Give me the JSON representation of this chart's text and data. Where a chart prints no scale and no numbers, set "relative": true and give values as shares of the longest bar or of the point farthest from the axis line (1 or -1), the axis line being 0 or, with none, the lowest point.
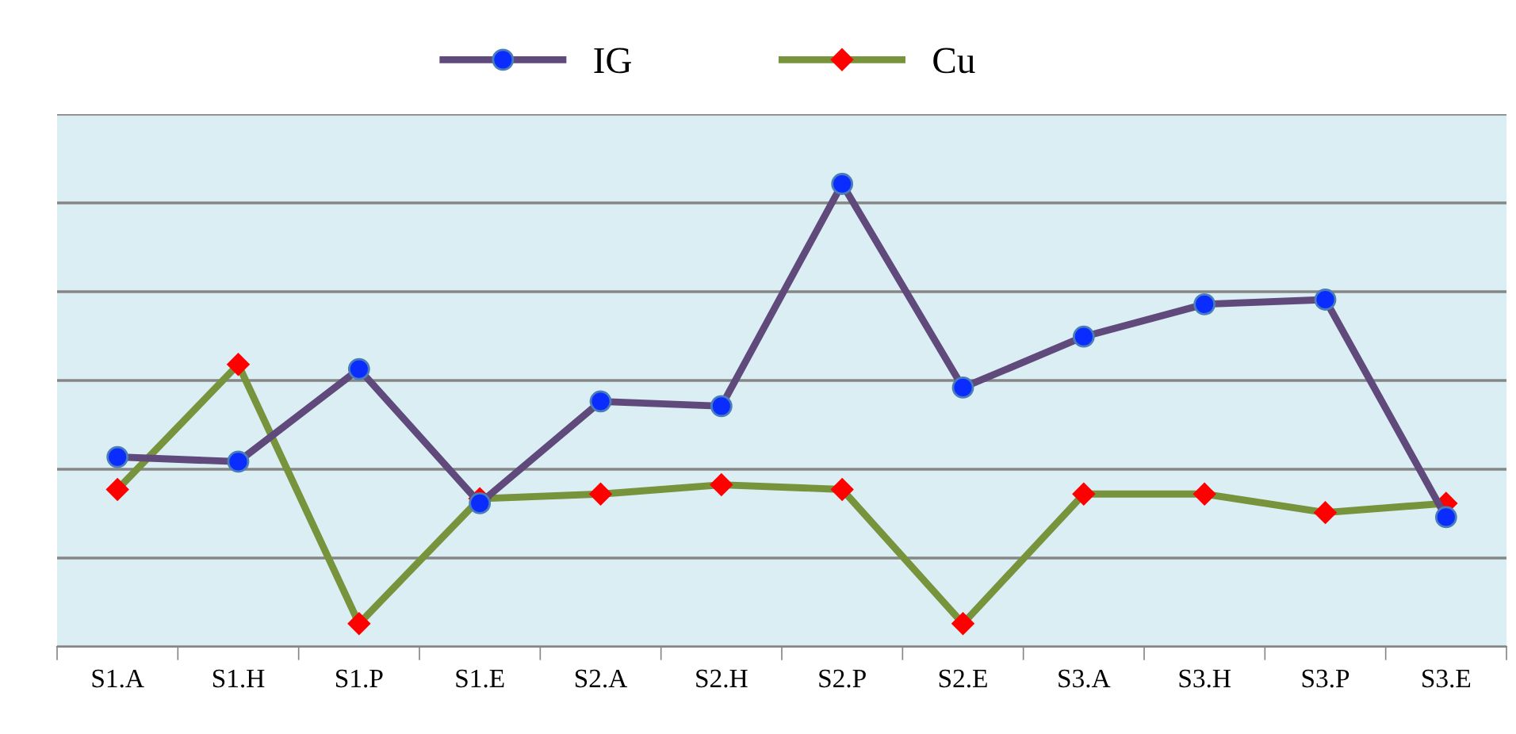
{
  "chart_data": {
    "type": "line",
    "relative": true,
    "grid": "y",
    "legend": "top",
    "categories": [
      "S1.A",
      "S1.H",
      "S1.P",
      "S1.E",
      "S2.A",
      "S2.H",
      "S2.P",
      "S2.E",
      "S3.A",
      "S3.H",
      "S3.P",
      "S3.E"
    ],
    "series": [
      {
        "name": "IG",
        "color": "#604a7b",
        "marker": "circle",
        "values": [
          0.41,
          0.4,
          0.6,
          0.31,
          0.53,
          0.52,
          1.0,
          0.56,
          0.67,
          0.74,
          0.75,
          0.28
        ]
      },
      {
        "name": "Cu",
        "color": "#77933c",
        "marker": "diamond",
        "values": [
          0.34,
          0.61,
          0.05,
          0.32,
          0.33,
          0.35,
          0.34,
          0.05,
          0.33,
          0.33,
          0.29,
          0.31
        ]
      }
    ]
  }
}
